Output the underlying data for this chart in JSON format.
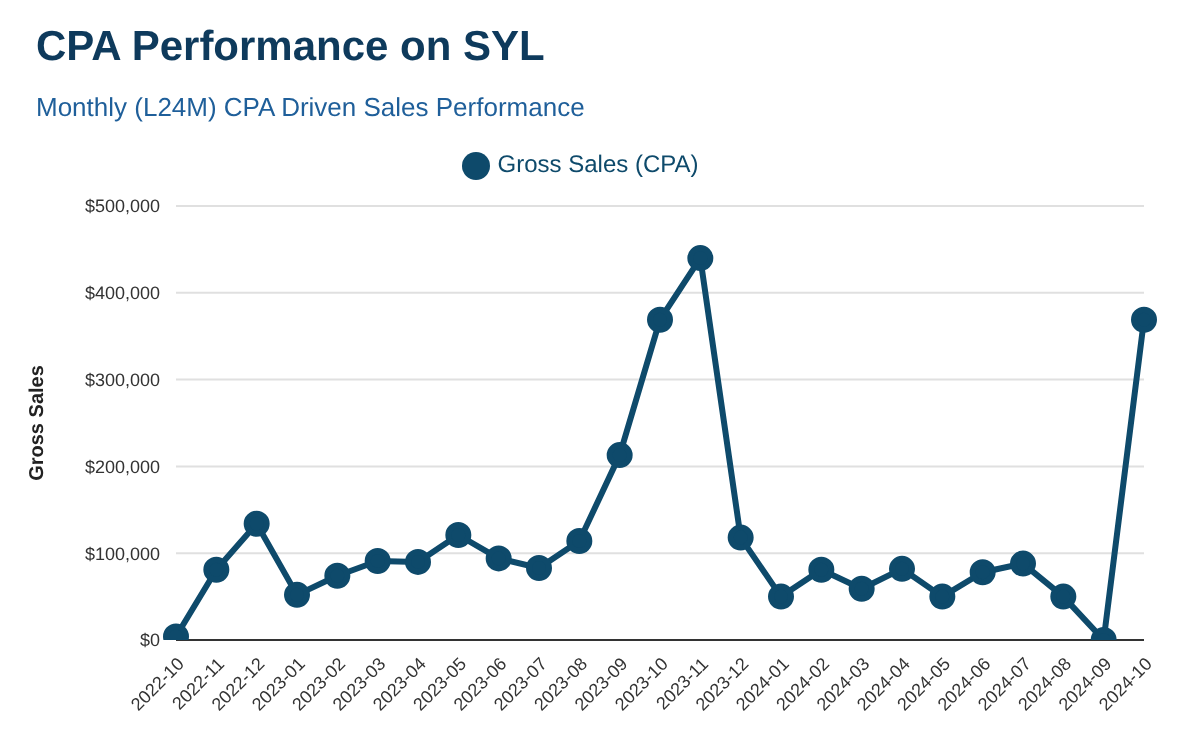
{
  "chart_data": {
    "type": "line",
    "title": "CPA Performance on SYL",
    "subtitle": "Monthly (L24M) CPA Driven Sales Performance",
    "ylabel": "Gross Sales",
    "categories": [
      "2022-10",
      "2022-11",
      "2022-12",
      "2023-01",
      "2023-02",
      "2023-03",
      "2023-04",
      "2023-05",
      "2023-06",
      "2023-07",
      "2023-08",
      "2023-09",
      "2023-10",
      "2023-11",
      "2023-12",
      "2024-01",
      "2024-02",
      "2024-03",
      "2024-04",
      "2024-05",
      "2024-06",
      "2024-07",
      "2024-08",
      "2024-09",
      "2024-10"
    ],
    "series": [
      {
        "name": "Gross Sales (CPA)",
        "color": "#0e4a6b",
        "values": [
          4000,
          81000,
          134000,
          52000,
          74000,
          91000,
          90000,
          121000,
          94000,
          83000,
          114000,
          213000,
          369000,
          440000,
          118000,
          50000,
          81000,
          59000,
          82000,
          50000,
          78000,
          88000,
          50000,
          0,
          369000
        ]
      }
    ],
    "ylim": [
      0,
      500000
    ],
    "yticks": [
      {
        "value": 0,
        "label": "$0"
      },
      {
        "value": 100000,
        "label": "$100,000"
      },
      {
        "value": 200000,
        "label": "$200,000"
      },
      {
        "value": 300000,
        "label": "$300,000"
      },
      {
        "value": 400000,
        "label": "$400,000"
      },
      {
        "value": 500000,
        "label": "$500,000"
      }
    ],
    "grid": "y",
    "legend": "top",
    "marker": "circle",
    "line_style": "solid"
  }
}
